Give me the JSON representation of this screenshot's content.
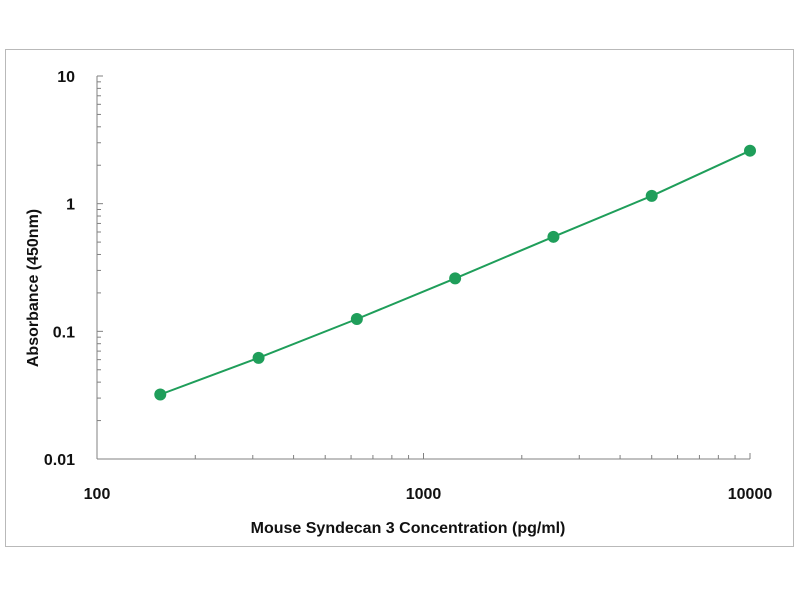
{
  "chart_data": {
    "type": "scatter",
    "xlabel": "Mouse Syndecan 3 Concentration (pg/ml)",
    "ylabel": "Absorbance (450nm)",
    "x_scale": "log",
    "y_scale": "log",
    "xlim": [
      100,
      10000
    ],
    "ylim": [
      0.01,
      10
    ],
    "x_ticks": [
      "100",
      "1000",
      "10000"
    ],
    "y_ticks": [
      "0.01",
      "0.1",
      "1",
      "10"
    ],
    "grid": false,
    "legend": "none",
    "fit_line": true,
    "colors": {
      "series": "#1f9e5a",
      "axis": "#808080",
      "text": "#111111"
    },
    "series": [
      {
        "x": [
          156.25,
          312.5,
          625,
          1250,
          2500,
          5000,
          10000
        ],
        "y": [
          0.032,
          0.062,
          0.125,
          0.26,
          0.55,
          1.15,
          2.6
        ]
      }
    ]
  }
}
